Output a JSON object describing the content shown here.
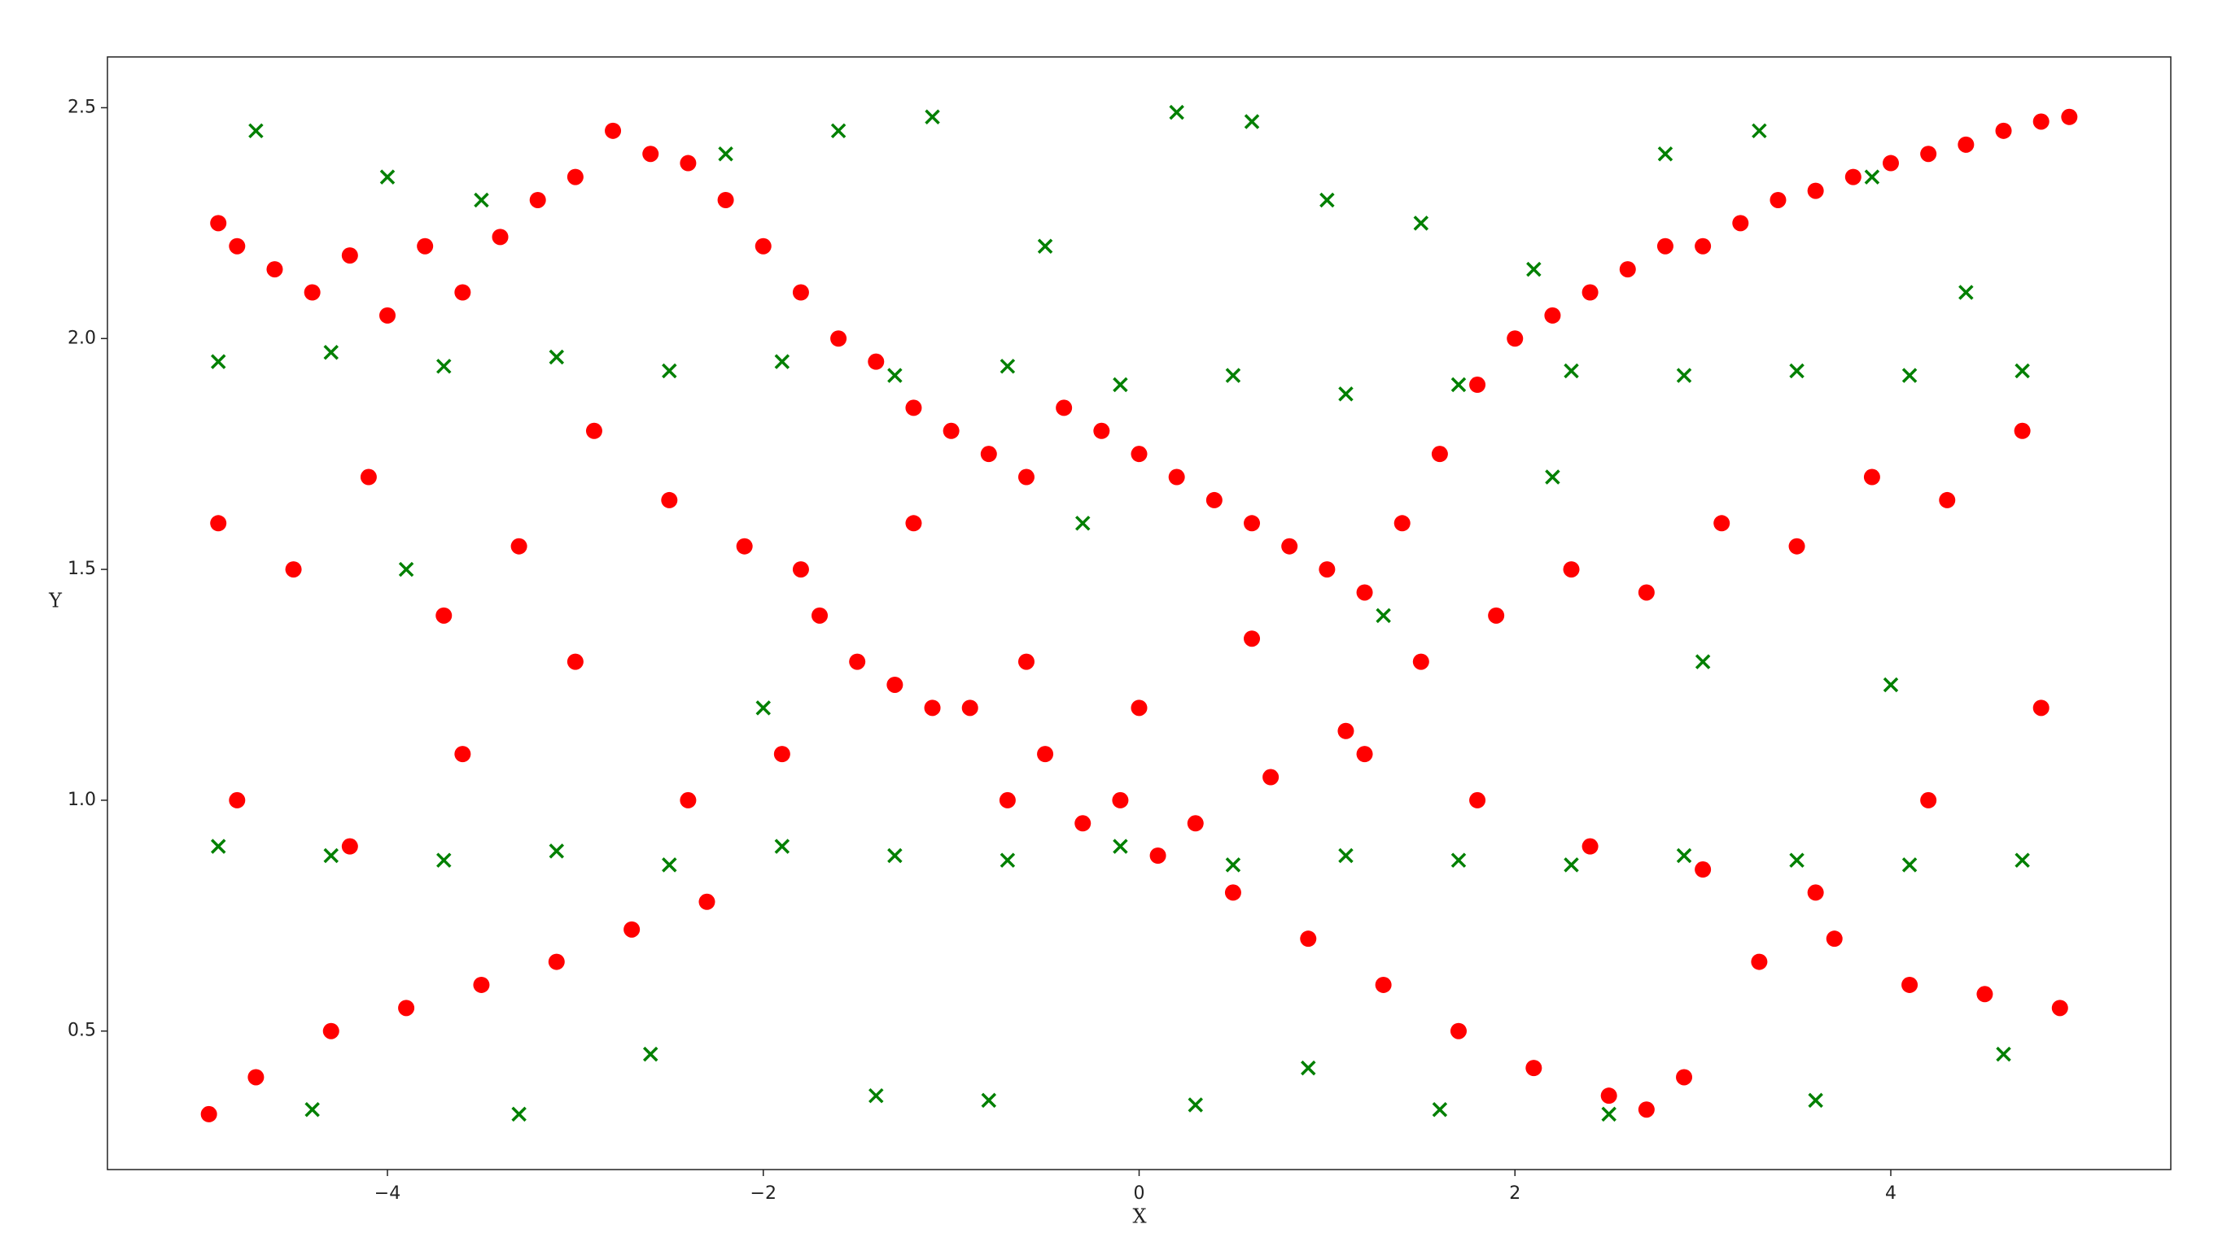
{
  "chart_data": {
    "type": "scatter",
    "x_label": "X",
    "y_label": "Y",
    "xlim": [
      -5.49,
      5.49
    ],
    "ylim": [
      0.2,
      2.61
    ],
    "xticks": [
      {
        "value": -4,
        "label": "−4"
      },
      {
        "value": -2,
        "label": "−2"
      },
      0,
      2,
      4
    ],
    "yticks": [
      0.5,
      {
        "value": 1,
        "label": "1.0"
      },
      1.5,
      {
        "value": 2,
        "label": "2.0"
      },
      2.5
    ],
    "series": [
      {
        "color": "#ff0000",
        "marker": "o",
        "x": [
          -4.9,
          -4.8,
          -4.6,
          -4.4,
          -4.2,
          -4.0,
          -3.8,
          -3.6,
          -3.4,
          -3.2,
          -3.0,
          -2.8,
          -2.6,
          -2.4,
          -2.2,
          -2.0,
          -1.8,
          -1.6,
          -1.4,
          -1.2,
          -1.0,
          -0.8,
          -0.6,
          -0.4,
          -0.2,
          0.0,
          0.2,
          0.4,
          0.6,
          0.8,
          1.0,
          1.2,
          1.4,
          1.6,
          1.8,
          2.0,
          2.2,
          2.4,
          2.6,
          2.8,
          3.0,
          3.2,
          3.4,
          3.6,
          3.8,
          4.0,
          4.2,
          4.4,
          4.6,
          4.8,
          4.95,
          -4.9,
          -4.5,
          -4.1,
          -3.7,
          -3.3,
          -2.9,
          -2.5,
          -2.1,
          -1.7,
          -1.3,
          -0.9,
          -0.5,
          -0.1,
          0.3,
          0.7,
          1.1,
          1.5,
          1.9,
          2.3,
          2.7,
          3.1,
          3.5,
          3.9,
          4.3,
          4.7,
          -4.95,
          -4.7,
          -4.3,
          -3.9,
          -3.5,
          -3.1,
          -2.7,
          -2.3,
          -1.9,
          -1.5,
          -1.1,
          -0.7,
          -0.3,
          0.1,
          0.5,
          0.9,
          1.3,
          1.7,
          2.1,
          2.5,
          2.7,
          2.9,
          3.3,
          3.7,
          4.1,
          4.5,
          4.9,
          -4.8,
          -4.2,
          -3.6,
          -3.0,
          -2.4,
          -1.8,
          -1.2,
          -0.6,
          0.0,
          0.6,
          1.2,
          1.8,
          2.4,
          3.0,
          3.6,
          4.2,
          4.8
        ],
        "y": [
          2.25,
          2.2,
          2.15,
          2.1,
          2.18,
          2.05,
          2.2,
          2.1,
          2.22,
          2.3,
          2.35,
          2.45,
          2.4,
          2.38,
          2.3,
          2.2,
          2.1,
          2.0,
          1.95,
          1.85,
          1.8,
          1.75,
          1.7,
          1.85,
          1.8,
          1.75,
          1.7,
          1.65,
          1.6,
          1.55,
          1.5,
          1.45,
          1.6,
          1.75,
          1.9,
          2.0,
          2.05,
          2.1,
          2.15,
          2.2,
          2.2,
          2.25,
          2.3,
          2.32,
          2.35,
          2.38,
          2.4,
          2.42,
          2.45,
          2.47,
          2.48,
          1.6,
          1.5,
          1.7,
          1.4,
          1.55,
          1.8,
          1.65,
          1.55,
          1.4,
          1.25,
          1.2,
          1.1,
          1.0,
          0.95,
          1.05,
          1.15,
          1.3,
          1.4,
          1.5,
          1.45,
          1.6,
          1.55,
          1.7,
          1.65,
          1.8,
          0.32,
          0.4,
          0.5,
          0.55,
          0.6,
          0.65,
          0.72,
          0.78,
          1.1,
          1.3,
          1.2,
          1.0,
          0.95,
          0.88,
          0.8,
          0.7,
          0.6,
          0.5,
          0.42,
          0.36,
          0.33,
          0.4,
          0.65,
          0.7,
          0.6,
          0.58,
          0.55,
          1.0,
          0.9,
          1.1,
          1.3,
          1.0,
          1.5,
          1.6,
          1.3,
          1.2,
          1.35,
          1.1,
          1.0,
          0.9,
          0.85,
          0.8,
          1.0,
          1.2
        ]
      },
      {
        "color": "#008000",
        "marker": "x",
        "x": [
          -4.9,
          -4.3,
          -3.7,
          -3.1,
          -2.5,
          -1.9,
          -1.3,
          -0.7,
          -0.1,
          0.5,
          1.1,
          1.7,
          2.3,
          2.9,
          3.5,
          4.1,
          4.7,
          -4.9,
          -4.3,
          -3.7,
          -3.1,
          -2.5,
          -1.9,
          -1.3,
          -0.7,
          -0.1,
          0.5,
          1.1,
          1.7,
          2.3,
          2.9,
          3.5,
          4.1,
          4.7,
          -4.7,
          -4.0,
          -3.5,
          -2.2,
          -1.6,
          -1.1,
          -0.5,
          0.2,
          0.6,
          1.0,
          1.5,
          2.1,
          2.8,
          3.3,
          3.9,
          4.4,
          -4.4,
          -3.3,
          -2.6,
          -1.4,
          -0.8,
          0.3,
          0.9,
          1.6,
          2.5,
          3.6,
          4.6,
          -3.9,
          -2.0,
          -0.3,
          1.3,
          2.2,
          3.0,
          4.0
        ],
        "y": [
          1.95,
          1.97,
          1.94,
          1.96,
          1.93,
          1.95,
          1.92,
          1.94,
          1.9,
          1.92,
          1.88,
          1.9,
          1.93,
          1.92,
          1.93,
          1.92,
          1.93,
          0.9,
          0.88,
          0.87,
          0.89,
          0.86,
          0.9,
          0.88,
          0.87,
          0.9,
          0.86,
          0.88,
          0.87,
          0.86,
          0.88,
          0.87,
          0.86,
          0.87,
          2.45,
          2.35,
          2.3,
          2.4,
          2.45,
          2.48,
          2.2,
          2.49,
          2.47,
          2.3,
          2.25,
          2.15,
          2.4,
          2.45,
          2.35,
          2.1,
          0.33,
          0.32,
          0.45,
          0.36,
          0.35,
          0.34,
          0.42,
          0.33,
          0.32,
          0.35,
          0.45,
          1.5,
          1.2,
          1.6,
          1.4,
          1.7,
          1.3,
          1.25
        ]
      }
    ]
  }
}
